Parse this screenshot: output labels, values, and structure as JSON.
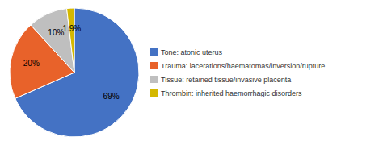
{
  "chart_data": {
    "type": "pie",
    "categories": [
      "Tone: atonic uterus",
      "Trauma: lacerations/haematomas/inversion/rupture",
      "Tissue: retained tissue/invasive placenta",
      "Thrombin: inherited haemorrhagic disorders"
    ],
    "values": [
      69,
      20,
      10,
      1.9
    ],
    "value_labels": [
      "69%",
      "20%",
      "10%",
      "1.9%"
    ],
    "colors": [
      "#4472C4",
      "#E8622A",
      "#BFBFBF",
      "#D4B800"
    ],
    "data_labels": true,
    "legend": "right"
  }
}
